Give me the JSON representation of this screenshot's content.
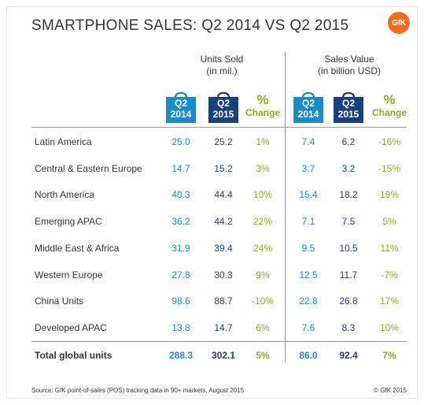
{
  "title": "SMARTPHONE SALES: Q2 2014 VS Q2 2015",
  "logo": "GfK",
  "groups": {
    "units": {
      "line1": "Units Sold",
      "line2": "(in mil.)"
    },
    "value": {
      "line1": "Sales Value",
      "line2": "(in billion USD)"
    }
  },
  "columns": {
    "q2": "Q2",
    "y2014": "2014",
    "y2015": "2015",
    "pct_symbol": "%",
    "change": "Change"
  },
  "colors": {
    "light_blue": "#1d8ac8",
    "dark_blue": "#1b3f7a",
    "green": "#8aaa2d",
    "brand_orange": "#f26b21"
  },
  "icons": {
    "column_header": "shopping-bag-icon"
  },
  "chart_data": {
    "type": "table",
    "title": "SMARTPHONE SALES: Q2 2014 VS Q2 2015",
    "column_headers": [
      "Q2 2014",
      "Q2 2015",
      "% Change",
      "Q2 2014",
      "Q2 2015",
      "% Change"
    ],
    "rows": [
      {
        "region": "Latin America",
        "units_2014": "25.0",
        "units_2015": "25.2",
        "units_change": "1%",
        "value_2014": "7.4",
        "value_2015": "6.2",
        "value_change": "-16%"
      },
      {
        "region": "Central & Eastern Europe",
        "units_2014": "14.7",
        "units_2015": "15.2",
        "units_change": "3%",
        "value_2014": "3.7",
        "value_2015": "3.2",
        "value_change": "-15%"
      },
      {
        "region": "North America",
        "units_2014": "40.3",
        "units_2015": "44.4",
        "units_change": "10%",
        "value_2014": "15.4",
        "value_2015": "18.2",
        "value_change": "19%"
      },
      {
        "region": "Emerging APAC",
        "units_2014": "36.2",
        "units_2015": "44.2",
        "units_change": "22%",
        "value_2014": "7.1",
        "value_2015": "7.5",
        "value_change": "5%"
      },
      {
        "region": "Middle East & Africa",
        "units_2014": "31.9",
        "units_2015": "39.4",
        "units_change": "24%",
        "value_2014": "9.5",
        "value_2015": "10.5",
        "value_change": "11%"
      },
      {
        "region": "Western Europe",
        "units_2014": "27.8",
        "units_2015": "30.3",
        "units_change": "9%",
        "value_2014": "12.5",
        "value_2015": "11.7",
        "value_change": "-7%"
      },
      {
        "region": "China Units",
        "units_2014": "98.6",
        "units_2015": "88.7",
        "units_change": "-10%",
        "value_2014": "22.8",
        "value_2015": "26.8",
        "value_change": "17%"
      },
      {
        "region": "Developed APAC",
        "units_2014": "13.8",
        "units_2015": "14.7",
        "units_change": "6%",
        "value_2014": "7.6",
        "value_2015": "8.3",
        "value_change": "10%"
      }
    ],
    "total": {
      "region": "Total global units",
      "units_2014": "288.3",
      "units_2015": "302.1",
      "units_change": "5%",
      "value_2014": "86.0",
      "value_2015": "92.4",
      "value_change": "7%"
    }
  },
  "footer": {
    "source": "Source: GfK point-of-sales (POS) tracking data in 90+ markets, August 2015",
    "copyright": "© GfK 2015"
  }
}
